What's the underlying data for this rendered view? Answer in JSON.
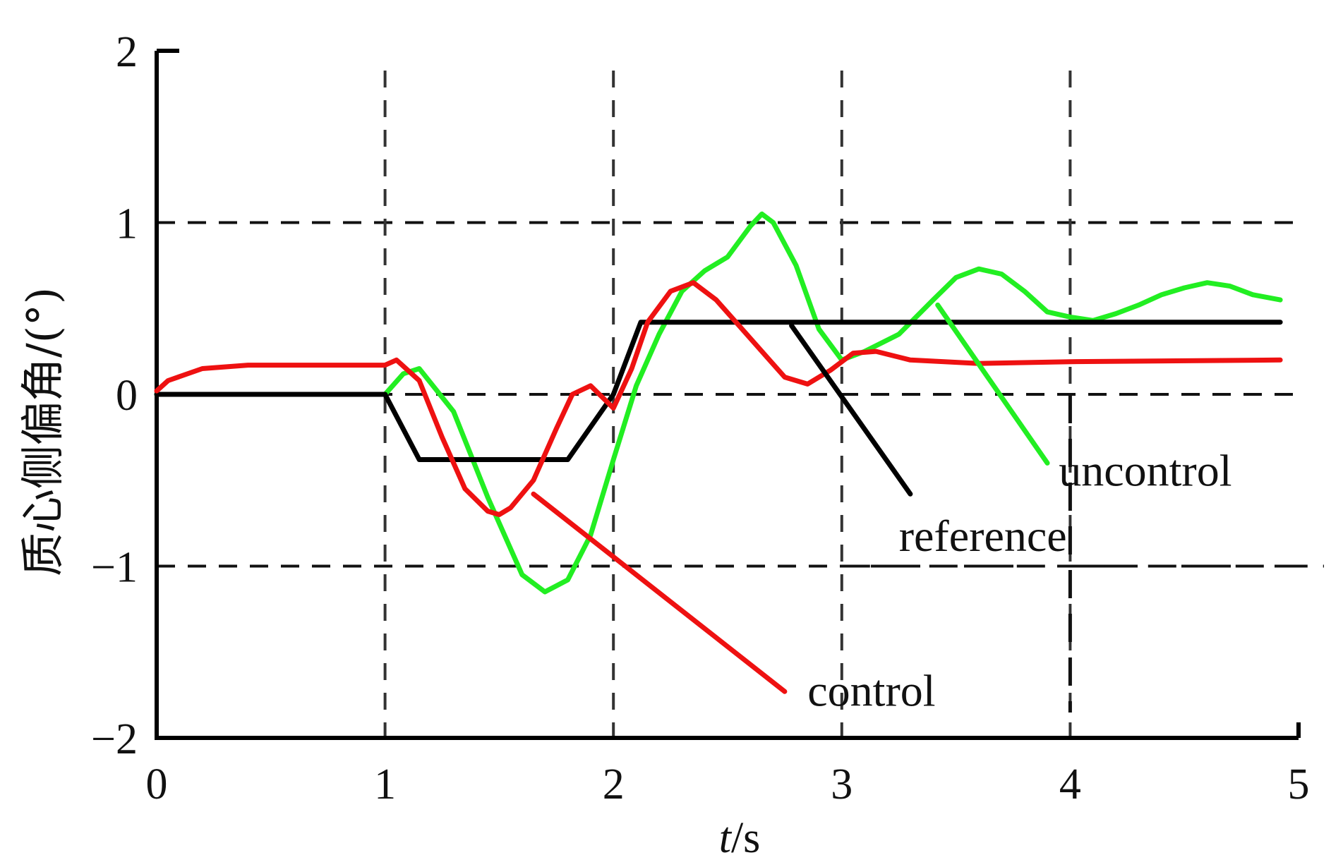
{
  "chart_data": {
    "type": "line",
    "xlabel_italic": "t",
    "xlabel_unit": "/s",
    "ylabel": "质心侧偏角/(°)",
    "xlim": [
      0,
      5
    ],
    "ylim": [
      -2,
      2
    ],
    "x_ticks": [
      "0",
      "1",
      "2",
      "3",
      "4",
      "5"
    ],
    "y_ticks": [
      "2",
      "1",
      "0",
      "−1",
      "−2"
    ],
    "grid": "dashed",
    "series": [
      {
        "name": "reference",
        "color": "#000000",
        "x": [
          0,
          1.0,
          1.15,
          1.8,
          2.0,
          2.12,
          4.92
        ],
        "y": [
          0,
          0,
          -0.38,
          -0.38,
          0,
          0.42,
          0.42
        ]
      },
      {
        "name": "control",
        "color": "#ee1111",
        "x": [
          0,
          0.05,
          0.2,
          0.4,
          0.6,
          1.0,
          1.05,
          1.15,
          1.25,
          1.35,
          1.45,
          1.5,
          1.55,
          1.65,
          1.75,
          1.82,
          1.9,
          2.0,
          2.08,
          2.15,
          2.25,
          2.35,
          2.45,
          2.55,
          2.65,
          2.75,
          2.85,
          2.95,
          3.05,
          3.15,
          3.3,
          3.6,
          4.0,
          4.92
        ],
        "y": [
          0.02,
          0.08,
          0.15,
          0.17,
          0.17,
          0.17,
          0.2,
          0.08,
          -0.25,
          -0.55,
          -0.68,
          -0.7,
          -0.66,
          -0.5,
          -0.2,
          0.0,
          0.05,
          -0.08,
          0.15,
          0.42,
          0.6,
          0.65,
          0.55,
          0.4,
          0.25,
          0.1,
          0.06,
          0.14,
          0.24,
          0.25,
          0.2,
          0.18,
          0.19,
          0.2
        ]
      },
      {
        "name": "uncontrol",
        "color": "#22ee22",
        "x": [
          0,
          1.0,
          1.08,
          1.15,
          1.3,
          1.45,
          1.6,
          1.7,
          1.8,
          1.9,
          2.0,
          2.1,
          2.2,
          2.3,
          2.4,
          2.5,
          2.6,
          2.65,
          2.7,
          2.8,
          2.9,
          3.0,
          3.1,
          3.25,
          3.4,
          3.5,
          3.6,
          3.7,
          3.8,
          3.9,
          4.0,
          4.1,
          4.2,
          4.3,
          4.4,
          4.5,
          4.6,
          4.7,
          4.8,
          4.92
        ],
        "y": [
          0,
          0.0,
          0.12,
          0.15,
          -0.1,
          -0.6,
          -1.05,
          -1.15,
          -1.08,
          -0.82,
          -0.38,
          0.05,
          0.35,
          0.6,
          0.72,
          0.8,
          0.98,
          1.05,
          1.0,
          0.75,
          0.38,
          0.2,
          0.25,
          0.35,
          0.55,
          0.68,
          0.73,
          0.7,
          0.6,
          0.48,
          0.45,
          0.43,
          0.47,
          0.52,
          0.58,
          0.62,
          0.65,
          0.63,
          0.58,
          0.55
        ]
      }
    ],
    "annotations": [
      {
        "text": "control",
        "color": "#ee1111",
        "line_from": [
          1.65,
          -0.58
        ],
        "line_to": [
          2.75,
          -1.73
        ],
        "text_at": [
          2.85,
          -1.73
        ]
      },
      {
        "text": "reference",
        "color": "#000000",
        "line_from": [
          2.78,
          0.4
        ],
        "line_to": [
          3.3,
          -0.58
        ],
        "text_at": [
          3.25,
          -0.83
        ]
      },
      {
        "text": "uncontrol",
        "color": "#22ee22",
        "line_from": [
          3.42,
          0.52
        ],
        "line_to": [
          3.9,
          -0.4
        ],
        "text_at": [
          3.95,
          -0.45
        ]
      }
    ]
  }
}
